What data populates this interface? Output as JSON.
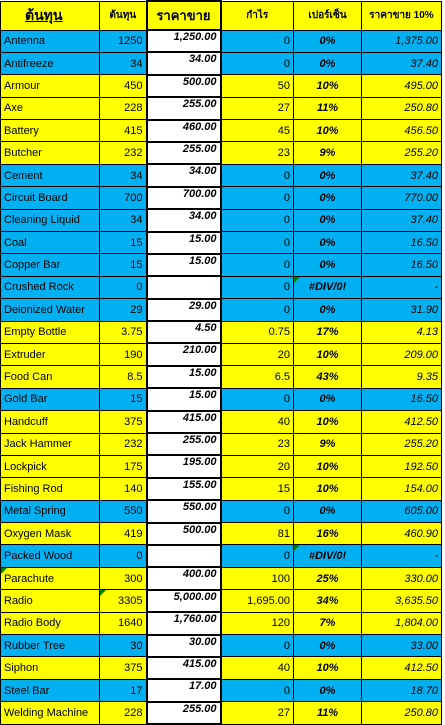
{
  "header": {
    "name": "ต้นทุน",
    "cost": "ต้นทุน",
    "price": "ราคาขาย",
    "profit": "กำไร",
    "percent": "เปอร์เซ็น",
    "price10": "ราคาขาย 10%"
  },
  "rows": [
    {
      "name": "Antenna",
      "cost": "1250",
      "price": "1,250.00",
      "profit": "0",
      "pct": "0%",
      "p10": "1,375.00",
      "color": "blue"
    },
    {
      "name": "Antifreeze",
      "cost": "34",
      "price": "34.00",
      "profit": "0",
      "pct": "0%",
      "p10": "37.40",
      "color": "blue"
    },
    {
      "name": "Armour",
      "cost": "450",
      "price": "500.00",
      "profit": "50",
      "pct": "10%",
      "p10": "495.00",
      "color": "yellow"
    },
    {
      "name": "Axe",
      "cost": "228",
      "price": "255.00",
      "profit": "27",
      "pct": "11%",
      "p10": "250.80",
      "color": "yellow"
    },
    {
      "name": "Battery",
      "cost": "415",
      "price": "460.00",
      "profit": "45",
      "pct": "10%",
      "p10": "456.50",
      "color": "yellow"
    },
    {
      "name": "Butcher",
      "cost": "232",
      "price": "255.00",
      "profit": "23",
      "pct": "9%",
      "p10": "255.20",
      "color": "yellow"
    },
    {
      "name": "Cement",
      "cost": "34",
      "price": "34.00",
      "profit": "0",
      "pct": "0%",
      "p10": "37.40",
      "color": "blue"
    },
    {
      "name": "Circuit Board",
      "cost": "700",
      "price": "700.00",
      "profit": "0",
      "pct": "0%",
      "p10": "770.00",
      "color": "blue"
    },
    {
      "name": "Cleaning Liquid",
      "cost": "34",
      "price": "34.00",
      "profit": "0",
      "pct": "0%",
      "p10": "37.40",
      "color": "blue"
    },
    {
      "name": "Coal",
      "cost": "15",
      "price": "15.00",
      "profit": "0",
      "pct": "0%",
      "p10": "16.50",
      "color": "blue"
    },
    {
      "name": "Copper Bar",
      "cost": "15",
      "price": "15.00",
      "profit": "0",
      "pct": "0%",
      "p10": "16.50",
      "color": "blue"
    },
    {
      "name": "Crushed Rock",
      "cost": "0",
      "price": "",
      "profit": "0",
      "pct": "#DIV/0!",
      "p10": "-",
      "color": "blue",
      "note_pct": true
    },
    {
      "name": "Deionized Water",
      "cost": "29",
      "price": "29.00",
      "profit": "0",
      "pct": "0%",
      "p10": "31.90",
      "color": "blue"
    },
    {
      "name": "Empty Bottle",
      "cost": "3.75",
      "price": "4.50",
      "profit": "0.75",
      "pct": "17%",
      "p10": "4.13",
      "color": "yellow"
    },
    {
      "name": "Extruder",
      "cost": "190",
      "price": "210.00",
      "profit": "20",
      "pct": "10%",
      "p10": "209.00",
      "color": "yellow"
    },
    {
      "name": "Food Can",
      "cost": "8.5",
      "price": "15.00",
      "profit": "6.5",
      "pct": "43%",
      "p10": "9.35",
      "color": "yellow"
    },
    {
      "name": "Gold Bar",
      "cost": "15",
      "price": "15.00",
      "profit": "0",
      "pct": "0%",
      "p10": "16.50",
      "color": "blue"
    },
    {
      "name": "Handcuff",
      "cost": "375",
      "price": "415.00",
      "profit": "40",
      "pct": "10%",
      "p10": "412.50",
      "color": "yellow"
    },
    {
      "name": "Jack Hammer",
      "cost": "232",
      "price": "255.00",
      "profit": "23",
      "pct": "9%",
      "p10": "255.20",
      "color": "yellow"
    },
    {
      "name": "Lockpick",
      "cost": "175",
      "price": "195.00",
      "profit": "20",
      "pct": "10%",
      "p10": "192.50",
      "color": "yellow"
    },
    {
      "name": "Fishing Rod",
      "cost": "140",
      "price": "155.00",
      "profit": "15",
      "pct": "10%",
      "p10": "154.00",
      "color": "yellow"
    },
    {
      "name": "Metal Spring",
      "cost": "550",
      "price": "550.00",
      "profit": "0",
      "pct": "0%",
      "p10": "605.00",
      "color": "blue"
    },
    {
      "name": "Oxygen Mask",
      "cost": "419",
      "price": "500.00",
      "profit": "81",
      "pct": "16%",
      "p10": "460.90",
      "color": "yellow"
    },
    {
      "name": "Packed Wood",
      "cost": "0",
      "price": "",
      "profit": "0",
      "pct": "#DIV/0!",
      "p10": "-",
      "color": "blue",
      "note_pct": true
    },
    {
      "name": "Parachute",
      "cost": "300",
      "price": "400.00",
      "profit": "100",
      "pct": "25%",
      "p10": "330.00",
      "color": "yellow",
      "note_name": true
    },
    {
      "name": "Radio",
      "cost": "3305",
      "price": "5,000.00",
      "profit": "1,695.00",
      "pct": "34%",
      "p10": "3,635.50",
      "color": "yellow",
      "note_cost": true
    },
    {
      "name": "Radio Body",
      "cost": "1640",
      "price": "1,760.00",
      "profit": "120",
      "pct": "7%",
      "p10": "1,804.00",
      "color": "yellow"
    },
    {
      "name": "Rubber Tree",
      "cost": "30",
      "price": "30.00",
      "profit": "0",
      "pct": "0%",
      "p10": "33.00",
      "color": "blue"
    },
    {
      "name": "Siphon",
      "cost": "375",
      "price": "415.00",
      "profit": "40",
      "pct": "10%",
      "p10": "412.50",
      "color": "yellow"
    },
    {
      "name": "Steel Bar",
      "cost": "17",
      "price": "17.00",
      "profit": "0",
      "pct": "0%",
      "p10": "18.70",
      "color": "blue"
    },
    {
      "name": "Welding Machine",
      "cost": "228",
      "price": "255.00",
      "profit": "27",
      "pct": "11%",
      "p10": "250.80",
      "color": "yellow"
    }
  ],
  "colors": {
    "yellow": "#ffff00",
    "blue": "#00b0f0",
    "price_cell": "#ffffff",
    "comment_marker": "#008000"
  }
}
